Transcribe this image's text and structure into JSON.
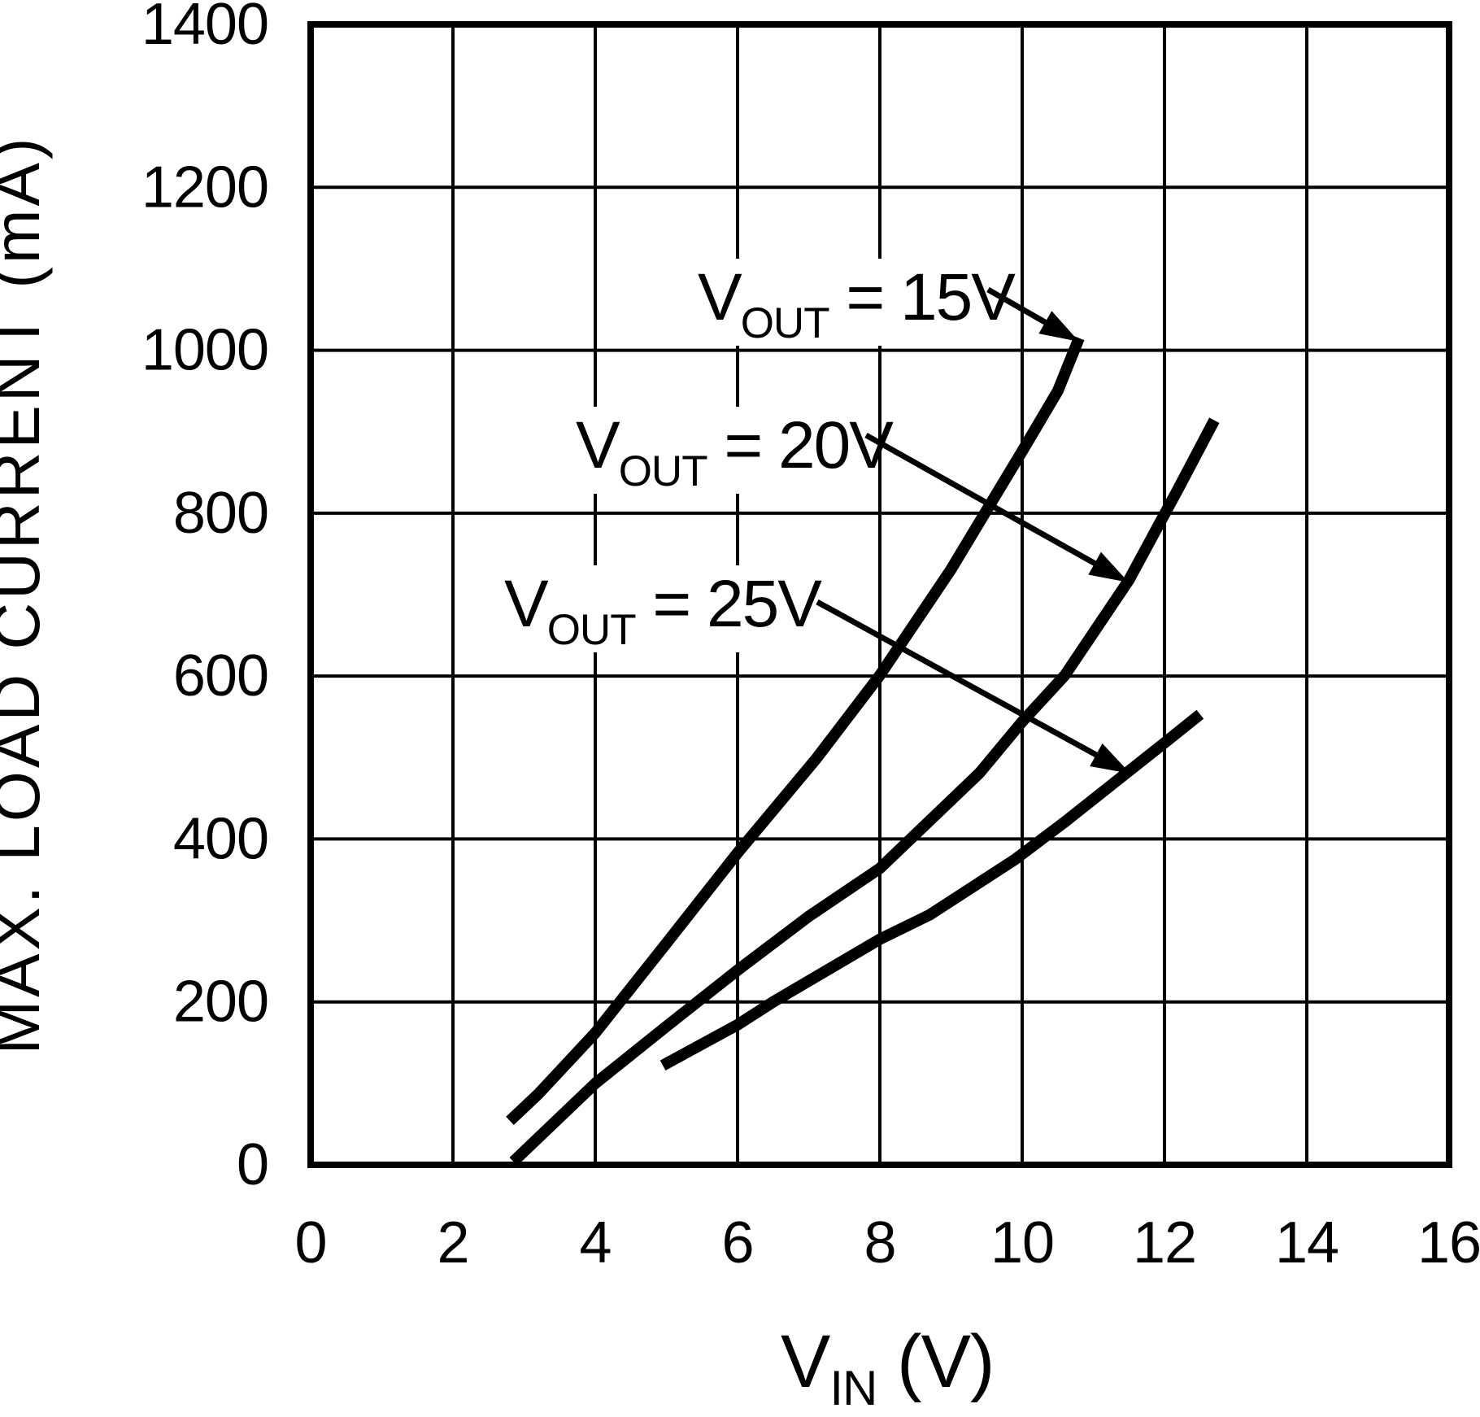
{
  "figure": {
    "background_color": "#ffffff",
    "line_color": "#000000",
    "y_axis": {
      "title": "MAX. LOAD CURRENT (mA)",
      "ticks": [
        "0",
        "200",
        "400",
        "600",
        "800",
        "1000",
        "1200",
        "1400"
      ]
    },
    "x_axis": {
      "title": {
        "main": "V",
        "sub": "IN",
        "rest": "  (V)"
      },
      "ticks": [
        "0",
        "2",
        "4",
        "6",
        "8",
        "10",
        "12",
        "14",
        "16"
      ]
    },
    "curve_labels": [
      {
        "main": "V",
        "sub": "OUT",
        "rest": " = 15V"
      },
      {
        "main": "V",
        "sub": "OUT",
        "rest": " = 20V"
      },
      {
        "main": "V",
        "sub": "OUT",
        "rest": " = 25V"
      }
    ]
  },
  "chart_data": {
    "type": "line",
    "title": "",
    "xlabel": "VIN (V)",
    "ylabel": "MAX. LOAD CURRENT (mA)",
    "xlim": [
      0,
      16
    ],
    "ylim": [
      0,
      1400
    ],
    "x_tick_step": 2,
    "y_tick_step": 200,
    "grid": true,
    "legend_position": "inline-arrow-annotations",
    "series": [
      {
        "name": "VOUT = 15V",
        "points": [
          [
            2.8,
            54
          ],
          [
            3.2,
            87
          ],
          [
            4,
            162
          ],
          [
            5,
            272
          ],
          [
            6,
            383
          ],
          [
            7.1,
            498
          ],
          [
            8,
            601
          ],
          [
            9,
            731
          ],
          [
            10,
            876
          ],
          [
            10.5,
            950
          ],
          [
            10.8,
            1015
          ]
        ]
      },
      {
        "name": "VOUT = 20V",
        "points": [
          [
            2.85,
            4
          ],
          [
            4,
            100
          ],
          [
            5,
            170
          ],
          [
            6,
            239
          ],
          [
            7,
            305
          ],
          [
            8,
            364
          ],
          [
            9.4,
            481
          ],
          [
            10,
            544
          ],
          [
            10.6,
            601
          ],
          [
            11.5,
            718
          ],
          [
            12.2,
            831
          ],
          [
            12.7,
            914
          ]
        ]
      },
      {
        "name": "VOUT = 25V",
        "points": [
          [
            4.95,
            122
          ],
          [
            6,
            172
          ],
          [
            6.5,
            200
          ],
          [
            8,
            277
          ],
          [
            8.7,
            307
          ],
          [
            9.9,
            375
          ],
          [
            10.6,
            421
          ],
          [
            12,
            518
          ],
          [
            12.5,
            553
          ]
        ]
      }
    ]
  }
}
